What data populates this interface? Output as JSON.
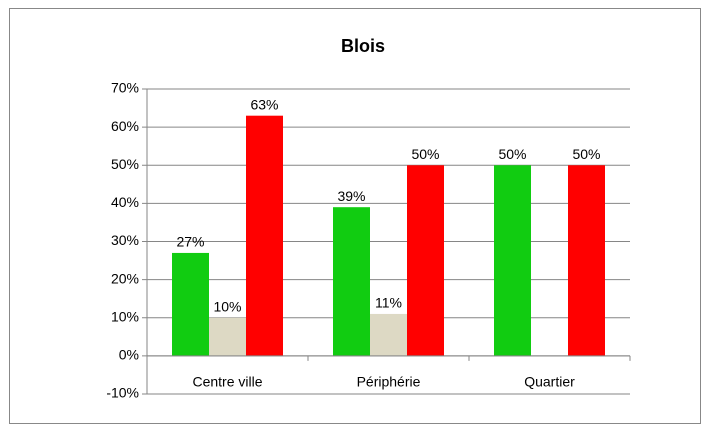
{
  "chart_data": {
    "type": "bar",
    "title": "Blois",
    "categories": [
      "Centre ville",
      "Périphérie",
      "Quartier"
    ],
    "series": [
      {
        "color": "#11cc11",
        "values": [
          27,
          39,
          50
        ],
        "value_labels": [
          "27%",
          "39%",
          "50%"
        ]
      },
      {
        "color": "#ddd9c4",
        "values": [
          10,
          11,
          null
        ],
        "value_labels": [
          "10%",
          "11%",
          null
        ]
      },
      {
        "color": "#ff0000",
        "values": [
          63,
          50,
          50
        ],
        "value_labels": [
          "63%",
          "50%",
          "50%"
        ]
      }
    ],
    "ylim": [
      -10,
      70
    ],
    "yticks": [
      {
        "value": -10,
        "label": "-10%"
      },
      {
        "value": 0,
        "label": "0%"
      },
      {
        "value": 10,
        "label": "10%"
      },
      {
        "value": 20,
        "label": "20%"
      },
      {
        "value": 30,
        "label": "30%"
      },
      {
        "value": 40,
        "label": "40%"
      },
      {
        "value": 50,
        "label": "50%"
      },
      {
        "value": 60,
        "label": "60%"
      },
      {
        "value": 70,
        "label": "70%"
      }
    ],
    "grid": true
  }
}
